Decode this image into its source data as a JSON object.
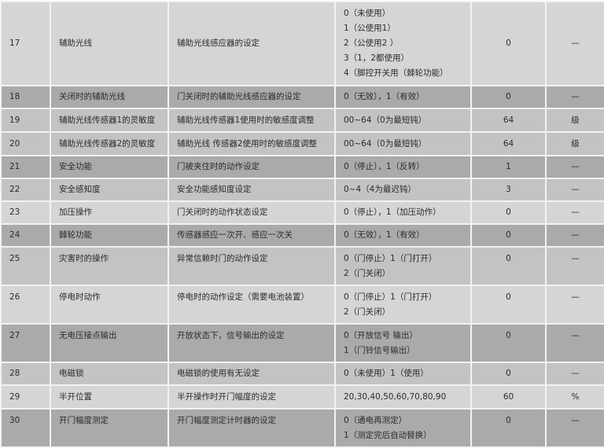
{
  "rows": [
    {
      "no": "17",
      "name": "辅助光线",
      "desc": "辅助光线感应器的设定",
      "options": [
        "0（未使用）",
        "1（公使用1）",
        "2（公使用2 ）",
        "3（1，2都使用）",
        "4（脚控开关用（棘轮功能）"
      ],
      "default": "0",
      "unit": "—"
    },
    {
      "no": "18",
      "name": "关闭时的辅助光线",
      "desc": "门关闭时的辅助光线感应器的设定",
      "options": [
        "0（无效），1（有效）"
      ],
      "default": "0",
      "unit": "—"
    },
    {
      "no": "19",
      "name": "辅助光线传感器1的灵敏度",
      "desc": "辅助光线传感器1使用时的敏感度调整",
      "options": [
        "00~64（0为最短钝）"
      ],
      "default": "64",
      "unit": "级"
    },
    {
      "no": "20",
      "name": "辅助光线传感器2的灵敏度",
      "desc": "辅助光线 传感器2使用时的敏感度调整",
      "options": [
        "00~64（0为最短钝）"
      ],
      "default": "64",
      "unit": "级"
    },
    {
      "no": "21",
      "name": "安全功能",
      "desc": "门被夹住时的动作设定",
      "options": [
        "0（停止），1（反转）"
      ],
      "default": "1",
      "unit": "—"
    },
    {
      "no": "22",
      "name": "安全感知度",
      "desc": "安全功能感知度设定",
      "options": [
        "0~4（4为最迟钝）"
      ],
      "default": "3",
      "unit": "—"
    },
    {
      "no": "23",
      "name": "加压操作",
      "desc": "门关闭时的动作状态设定",
      "options": [
        "0（停止），1（加压动作）"
      ],
      "default": "0",
      "unit": "—"
    },
    {
      "no": "24",
      "name": "棘轮功能",
      "desc": "传感器感应一次开、感应一次关",
      "options": [
        "0（无效），1（有效）"
      ],
      "default": "0",
      "unit": "—"
    },
    {
      "no": "25",
      "name": "灾害时的操作",
      "desc": "异常信赖时门的动作设定",
      "options": [
        "0（门停止）1（门打开）",
        "2（门关闭）"
      ],
      "default": "0",
      "unit": "—"
    },
    {
      "no": "26",
      "name": "停电时动作",
      "desc": "停电时的动作设定（需要电池装置）",
      "options": [
        "0（门停止）1（门打开）",
        "2（门关闭）"
      ],
      "default": "0",
      "unit": "—"
    },
    {
      "no": "27",
      "name": "无电压接点输出",
      "desc": "开放状态下，信号输出的设定",
      "options": [
        "0（开放信号 输出）",
        "1（门铃信号输出）"
      ],
      "default": "0",
      "unit": "—"
    },
    {
      "no": "28",
      "name": "电磁锁",
      "desc": "电磁锁的使用有无设定",
      "options": [
        "0（未使用）1（使用）"
      ],
      "default": "0",
      "unit": "—"
    },
    {
      "no": "29",
      "name": "半开位置",
      "desc": "半开操作时开门幅度的设定",
      "options": [
        "20,30,40,50,60,70,80,90"
      ],
      "default": "60",
      "unit": "%"
    },
    {
      "no": "30",
      "name": "开门幅度测定",
      "desc": "开门幅度测定计时器的设定",
      "options": [
        "0（通电再测定）",
        "1（测定完后自动替换）"
      ],
      "default": "0",
      "unit": "—"
    }
  ]
}
